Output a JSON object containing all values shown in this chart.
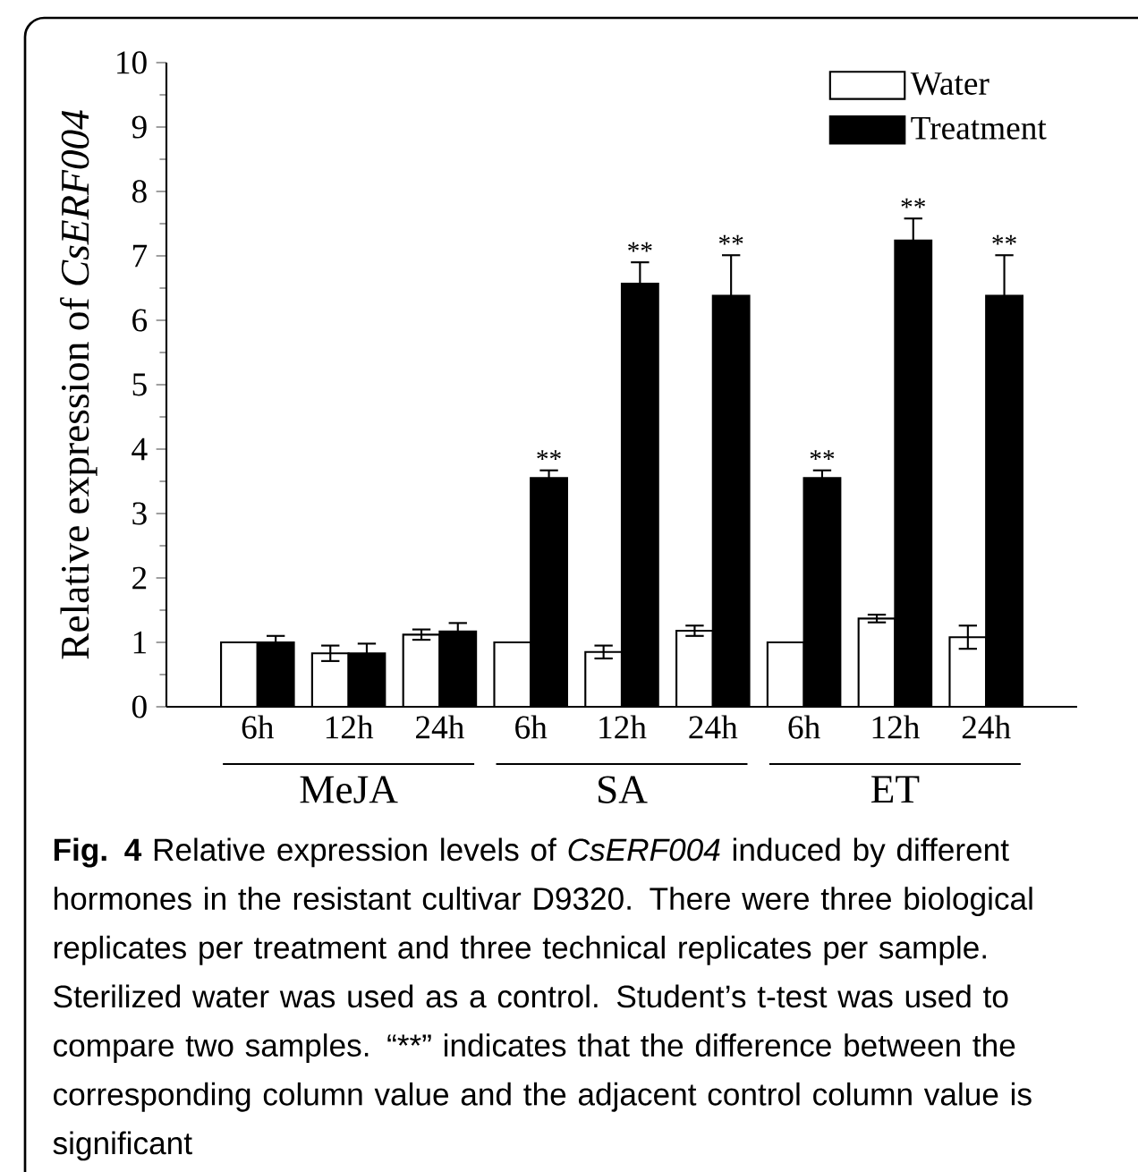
{
  "chart_data": {
    "type": "bar",
    "title": "Fig. 4",
    "ylabel": "Relative expression of *CsERF004*",
    "categories": [
      "6h",
      "12h",
      "24h",
      "6h",
      "12h",
      "24h",
      "6h",
      "12h",
      "24h"
    ],
    "series": [
      {
        "name": "Water",
        "color": "#ffffff",
        "values": [
          1.0,
          0.83,
          1.12,
          1.0,
          0.85,
          1.18,
          1.0,
          1.37,
          1.08
        ],
        "errors": [
          null,
          0.12,
          0.08,
          null,
          0.1,
          0.08,
          null,
          0.06,
          0.18
        ]
      },
      {
        "name": "Treatment",
        "color": "#000000",
        "values": [
          1.0,
          0.83,
          1.17,
          3.55,
          6.57,
          6.38,
          3.55,
          7.24,
          6.38
        ],
        "errors": [
          0.1,
          0.15,
          0.13,
          0.12,
          0.33,
          0.63,
          0.12,
          0.34,
          0.63
        ],
        "value_labels": [
          null,
          null,
          null,
          "**",
          "**",
          "**",
          "**",
          "**",
          "**"
        ]
      }
    ],
    "ylim": [
      0,
      10
    ],
    "yticks": [
      0,
      1,
      2,
      3,
      4,
      5,
      6,
      7,
      8,
      9,
      10
    ],
    "legend": "top right",
    "annotations": [
      "MeJA",
      "SA",
      "ET",
      "Relative expression levels of *CsERF004* induced by different hormones in the resistant cultivar D9320. There were three biological replicates per treatment and three technical replicates per sample. Sterilized water was used as a control. Student’s t-test was used to compare two samples. “**” indicates that the difference between the corresponding column value and the adjacent control column value is significant"
    ]
  }
}
